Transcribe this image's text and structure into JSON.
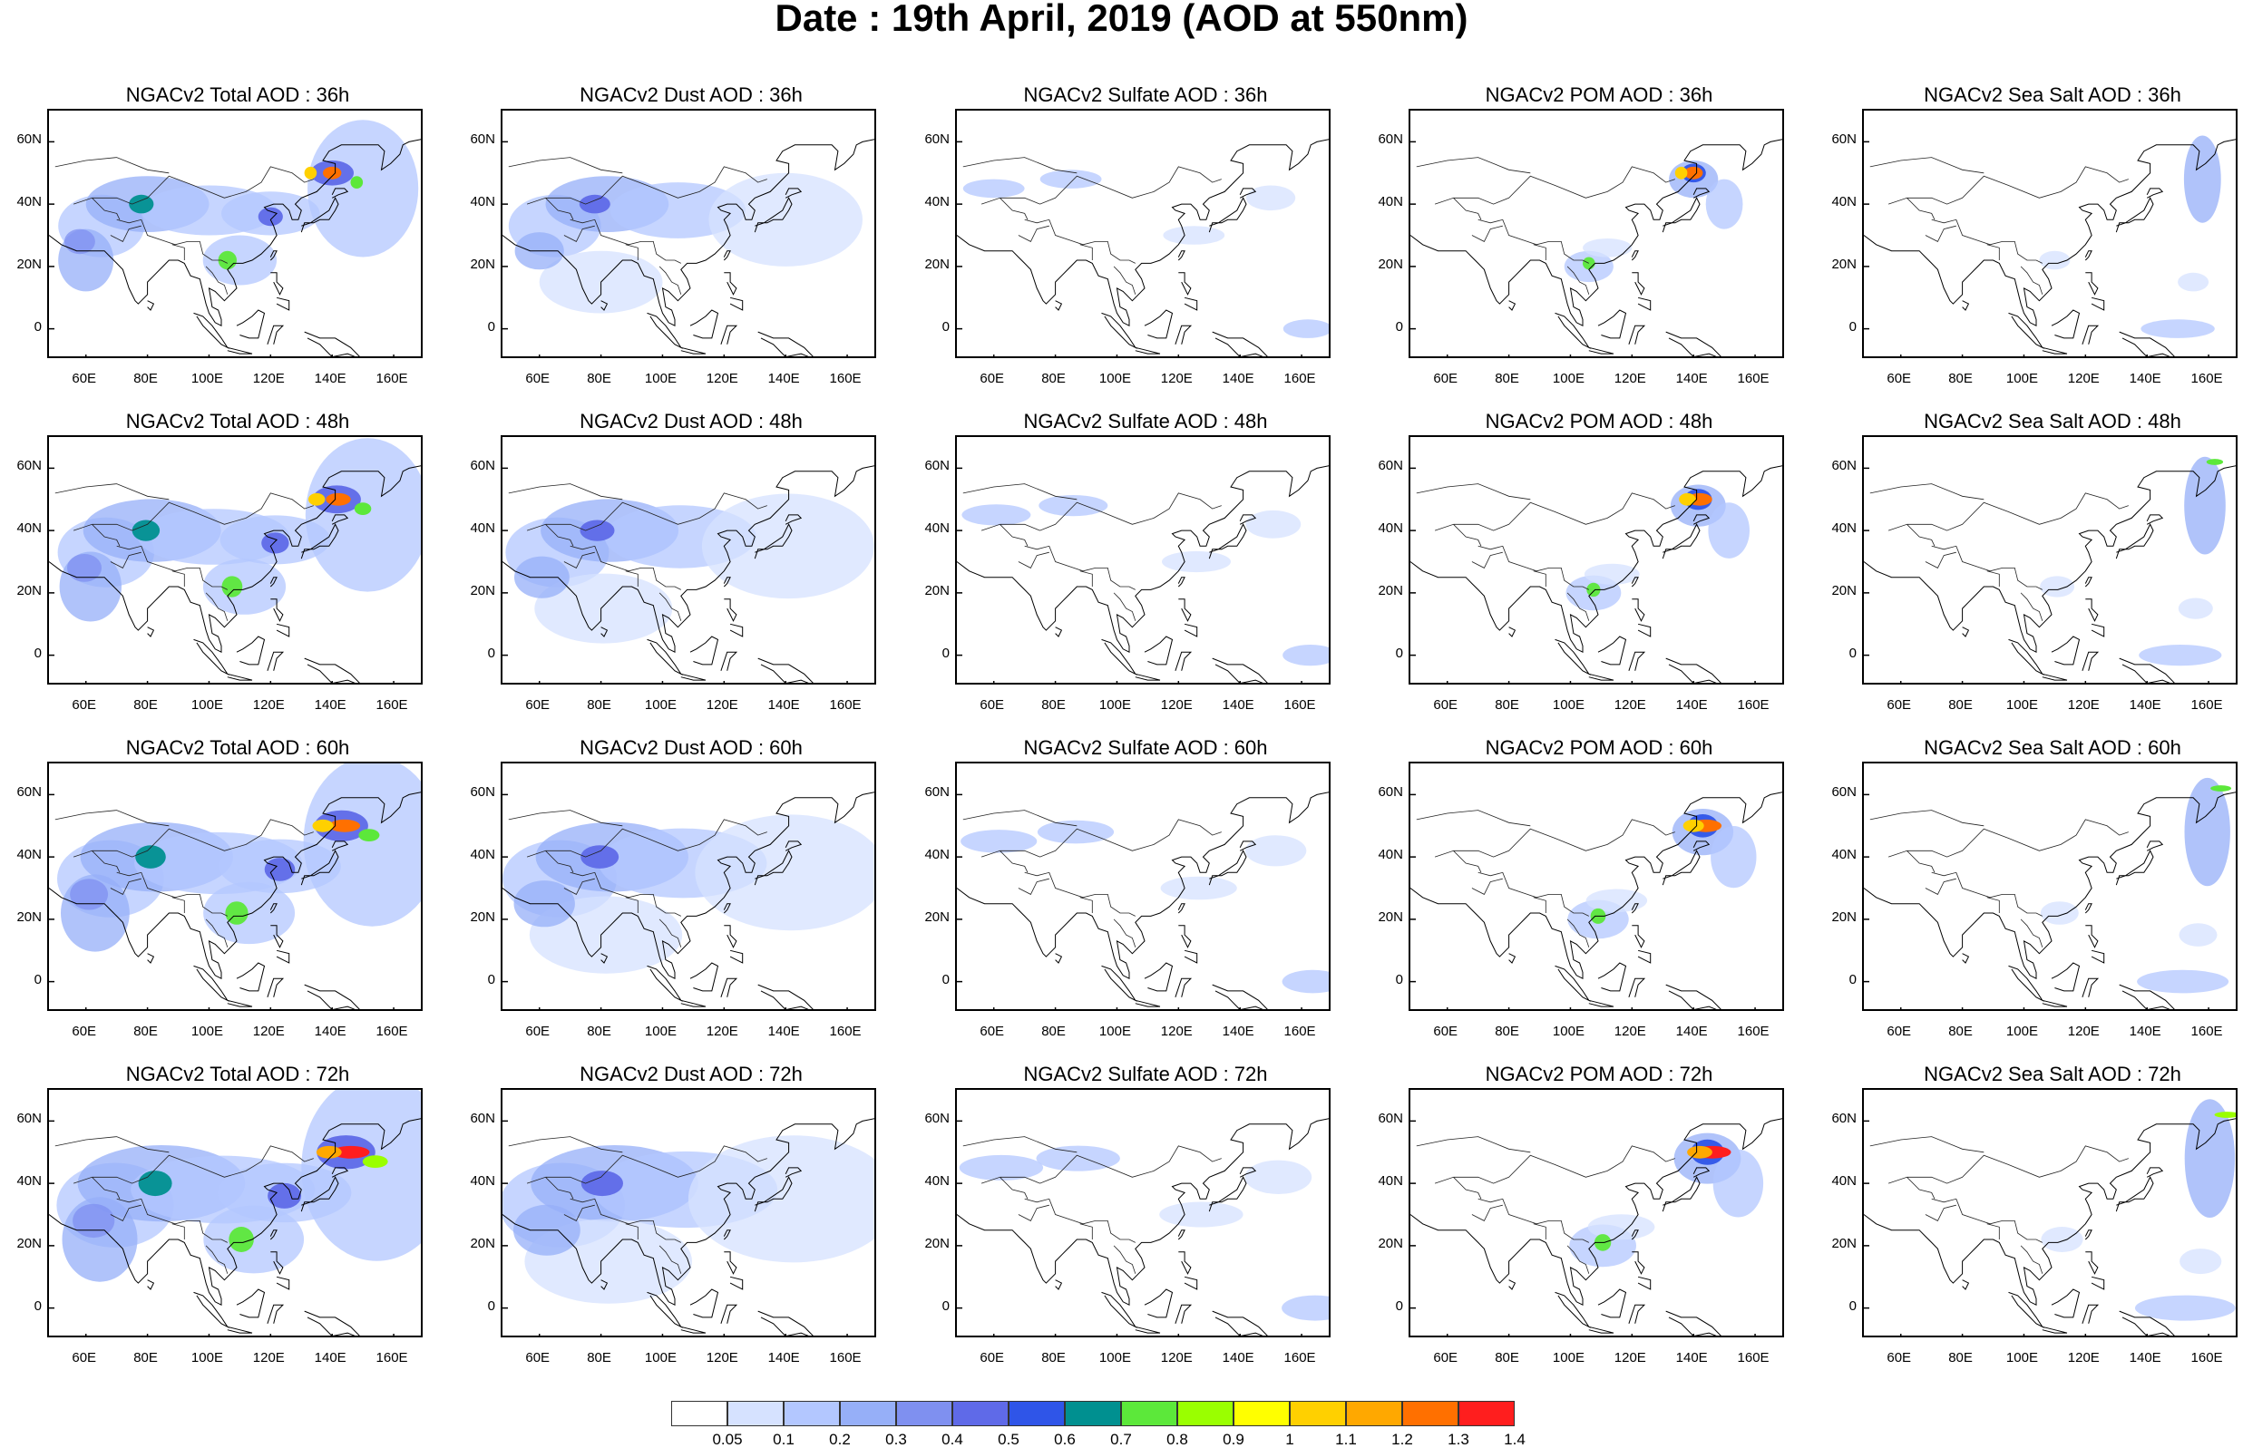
{
  "title": "Date : 19th April, 2019 (AOD at 550nm)",
  "xticks": [
    "60E",
    "80E",
    "100E",
    "120E",
    "140E",
    "160E"
  ],
  "yticks": [
    "60N",
    "40N",
    "20N",
    "0"
  ],
  "panels": [
    {
      "title": "NGACv2 Total AOD : 36h"
    },
    {
      "title": "NGACv2 Dust AOD : 36h"
    },
    {
      "title": "NGACv2 Sulfate AOD : 36h"
    },
    {
      "title": "NGACv2 POM AOD : 36h"
    },
    {
      "title": "NGACv2 Sea Salt AOD : 36h"
    },
    {
      "title": "NGACv2 Total AOD : 48h"
    },
    {
      "title": "NGACv2 Dust AOD : 48h"
    },
    {
      "title": "NGACv2 Sulfate AOD : 48h"
    },
    {
      "title": "NGACv2 POM AOD : 48h"
    },
    {
      "title": "NGACv2 Sea Salt AOD : 48h"
    },
    {
      "title": "NGACv2 Total AOD : 60h"
    },
    {
      "title": "NGACv2 Dust AOD : 60h"
    },
    {
      "title": "NGACv2 Sulfate AOD : 60h"
    },
    {
      "title": "NGACv2 POM AOD : 60h"
    },
    {
      "title": "NGACv2 Sea Salt AOD : 60h"
    },
    {
      "title": "NGACv2 Total AOD : 72h"
    },
    {
      "title": "NGACv2 Dust AOD : 72h"
    },
    {
      "title": "NGACv2 Sulfate AOD : 72h"
    },
    {
      "title": "NGACv2 POM AOD : 72h"
    },
    {
      "title": "NGACv2 Sea Salt AOD : 72h"
    }
  ],
  "colorbar": {
    "colors": [
      "#ffffff",
      "#d6e2ff",
      "#b3c7ff",
      "#96aff8",
      "#7f90f0",
      "#5f6ae8",
      "#2f55e8",
      "#009090",
      "#5ce83a",
      "#9aff00",
      "#ffff00",
      "#ffd000",
      "#ffa800",
      "#ff7000",
      "#ff1e1e"
    ],
    "labels": [
      "0.05",
      "0.1",
      "0.2",
      "0.3",
      "0.4",
      "0.5",
      "0.6",
      "0.7",
      "0.8",
      "0.9",
      "1",
      "1.1",
      "1.2",
      "1.3",
      "1.4"
    ]
  }
}
